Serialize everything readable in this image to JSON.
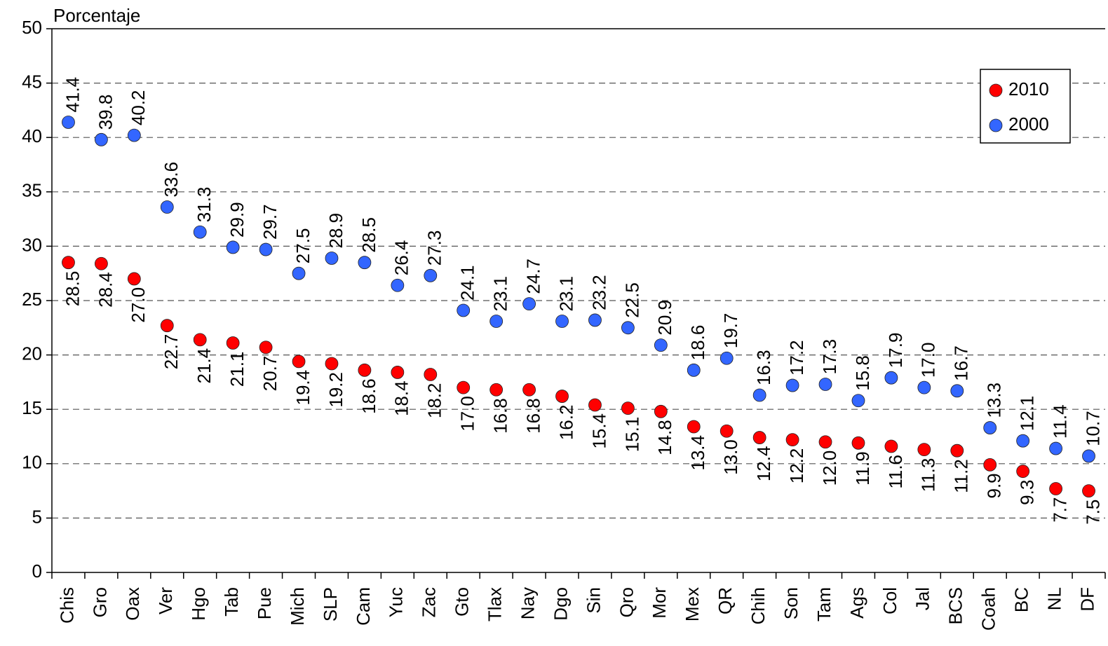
{
  "chart_data": {
    "type": "dot",
    "y_label": "Porcentaje",
    "categories": [
      "Chis",
      "Gro",
      "Oax",
      "Ver",
      "Hgo",
      "Tab",
      "Pue",
      "Mich",
      "SLP",
      "Cam",
      "Yuc",
      "Zac",
      "Gto",
      "Tlax",
      "Nay",
      "Dgo",
      "Sin",
      "Qro",
      "Mor",
      "Mex",
      "QR",
      "Chih",
      "Son",
      "Tam",
      "Ags",
      "Col",
      "Jal",
      "BCS",
      "Coah",
      "BC",
      "NL",
      "DF"
    ],
    "series": [
      {
        "name": "2010",
        "color": "#ff0000",
        "label_side": "below",
        "values": [
          28.5,
          28.4,
          27.0,
          22.7,
          21.4,
          21.1,
          20.7,
          19.4,
          19.2,
          18.6,
          18.4,
          18.2,
          17.0,
          16.8,
          16.8,
          16.2,
          15.4,
          15.1,
          14.8,
          13.4,
          13.0,
          12.4,
          12.2,
          12.0,
          11.9,
          11.6,
          11.3,
          11.2,
          9.9,
          9.3,
          7.7,
          7.5
        ],
        "value_labels": [
          "28.5",
          "28.4",
          "27.0",
          "22.7",
          "21.4",
          "21.1",
          "20.7",
          "19.4",
          "19.2",
          "18.6",
          "18.4",
          "18.2",
          "17.0",
          "16.8",
          "16.8",
          "16.2",
          "15.4",
          "15.1",
          "14.8",
          "13.4",
          "13.0",
          "12.4",
          "12.2",
          "12.0",
          "11.9",
          "11.6",
          "11.3",
          "11.2",
          "9.9",
          "9.3",
          "7.7",
          "7.5"
        ]
      },
      {
        "name": "2000",
        "color": "#3366ff",
        "label_side": "above",
        "values": [
          41.4,
          39.8,
          40.2,
          33.6,
          31.3,
          29.9,
          29.7,
          27.5,
          28.9,
          28.5,
          26.4,
          27.3,
          24.1,
          23.1,
          24.7,
          23.1,
          23.2,
          22.5,
          20.9,
          18.6,
          19.7,
          16.3,
          17.2,
          17.3,
          15.8,
          17.9,
          17.0,
          16.7,
          13.3,
          12.1,
          11.4,
          10.7
        ],
        "value_labels": [
          "41.4",
          "39.8",
          "40.2",
          "33.6",
          "31.3",
          "29.9",
          "29.7",
          "27.5",
          "28.9",
          "28.5",
          "26.4",
          "27.3",
          "24.1",
          "23.1",
          "24.7",
          "23.1",
          "23.2",
          "22.5",
          "20.9",
          "18.6",
          "19.7",
          "16.3",
          "17.2",
          "17.3",
          "15.8",
          "17.9",
          "17.0",
          "16.7",
          "13.3",
          "12.1",
          "11.4",
          "10.7"
        ]
      }
    ],
    "ylim": [
      0,
      50
    ],
    "yticks": [
      0,
      5,
      10,
      15,
      20,
      25,
      30,
      35,
      40,
      45,
      50
    ],
    "grid": true,
    "legend": "upper right"
  }
}
